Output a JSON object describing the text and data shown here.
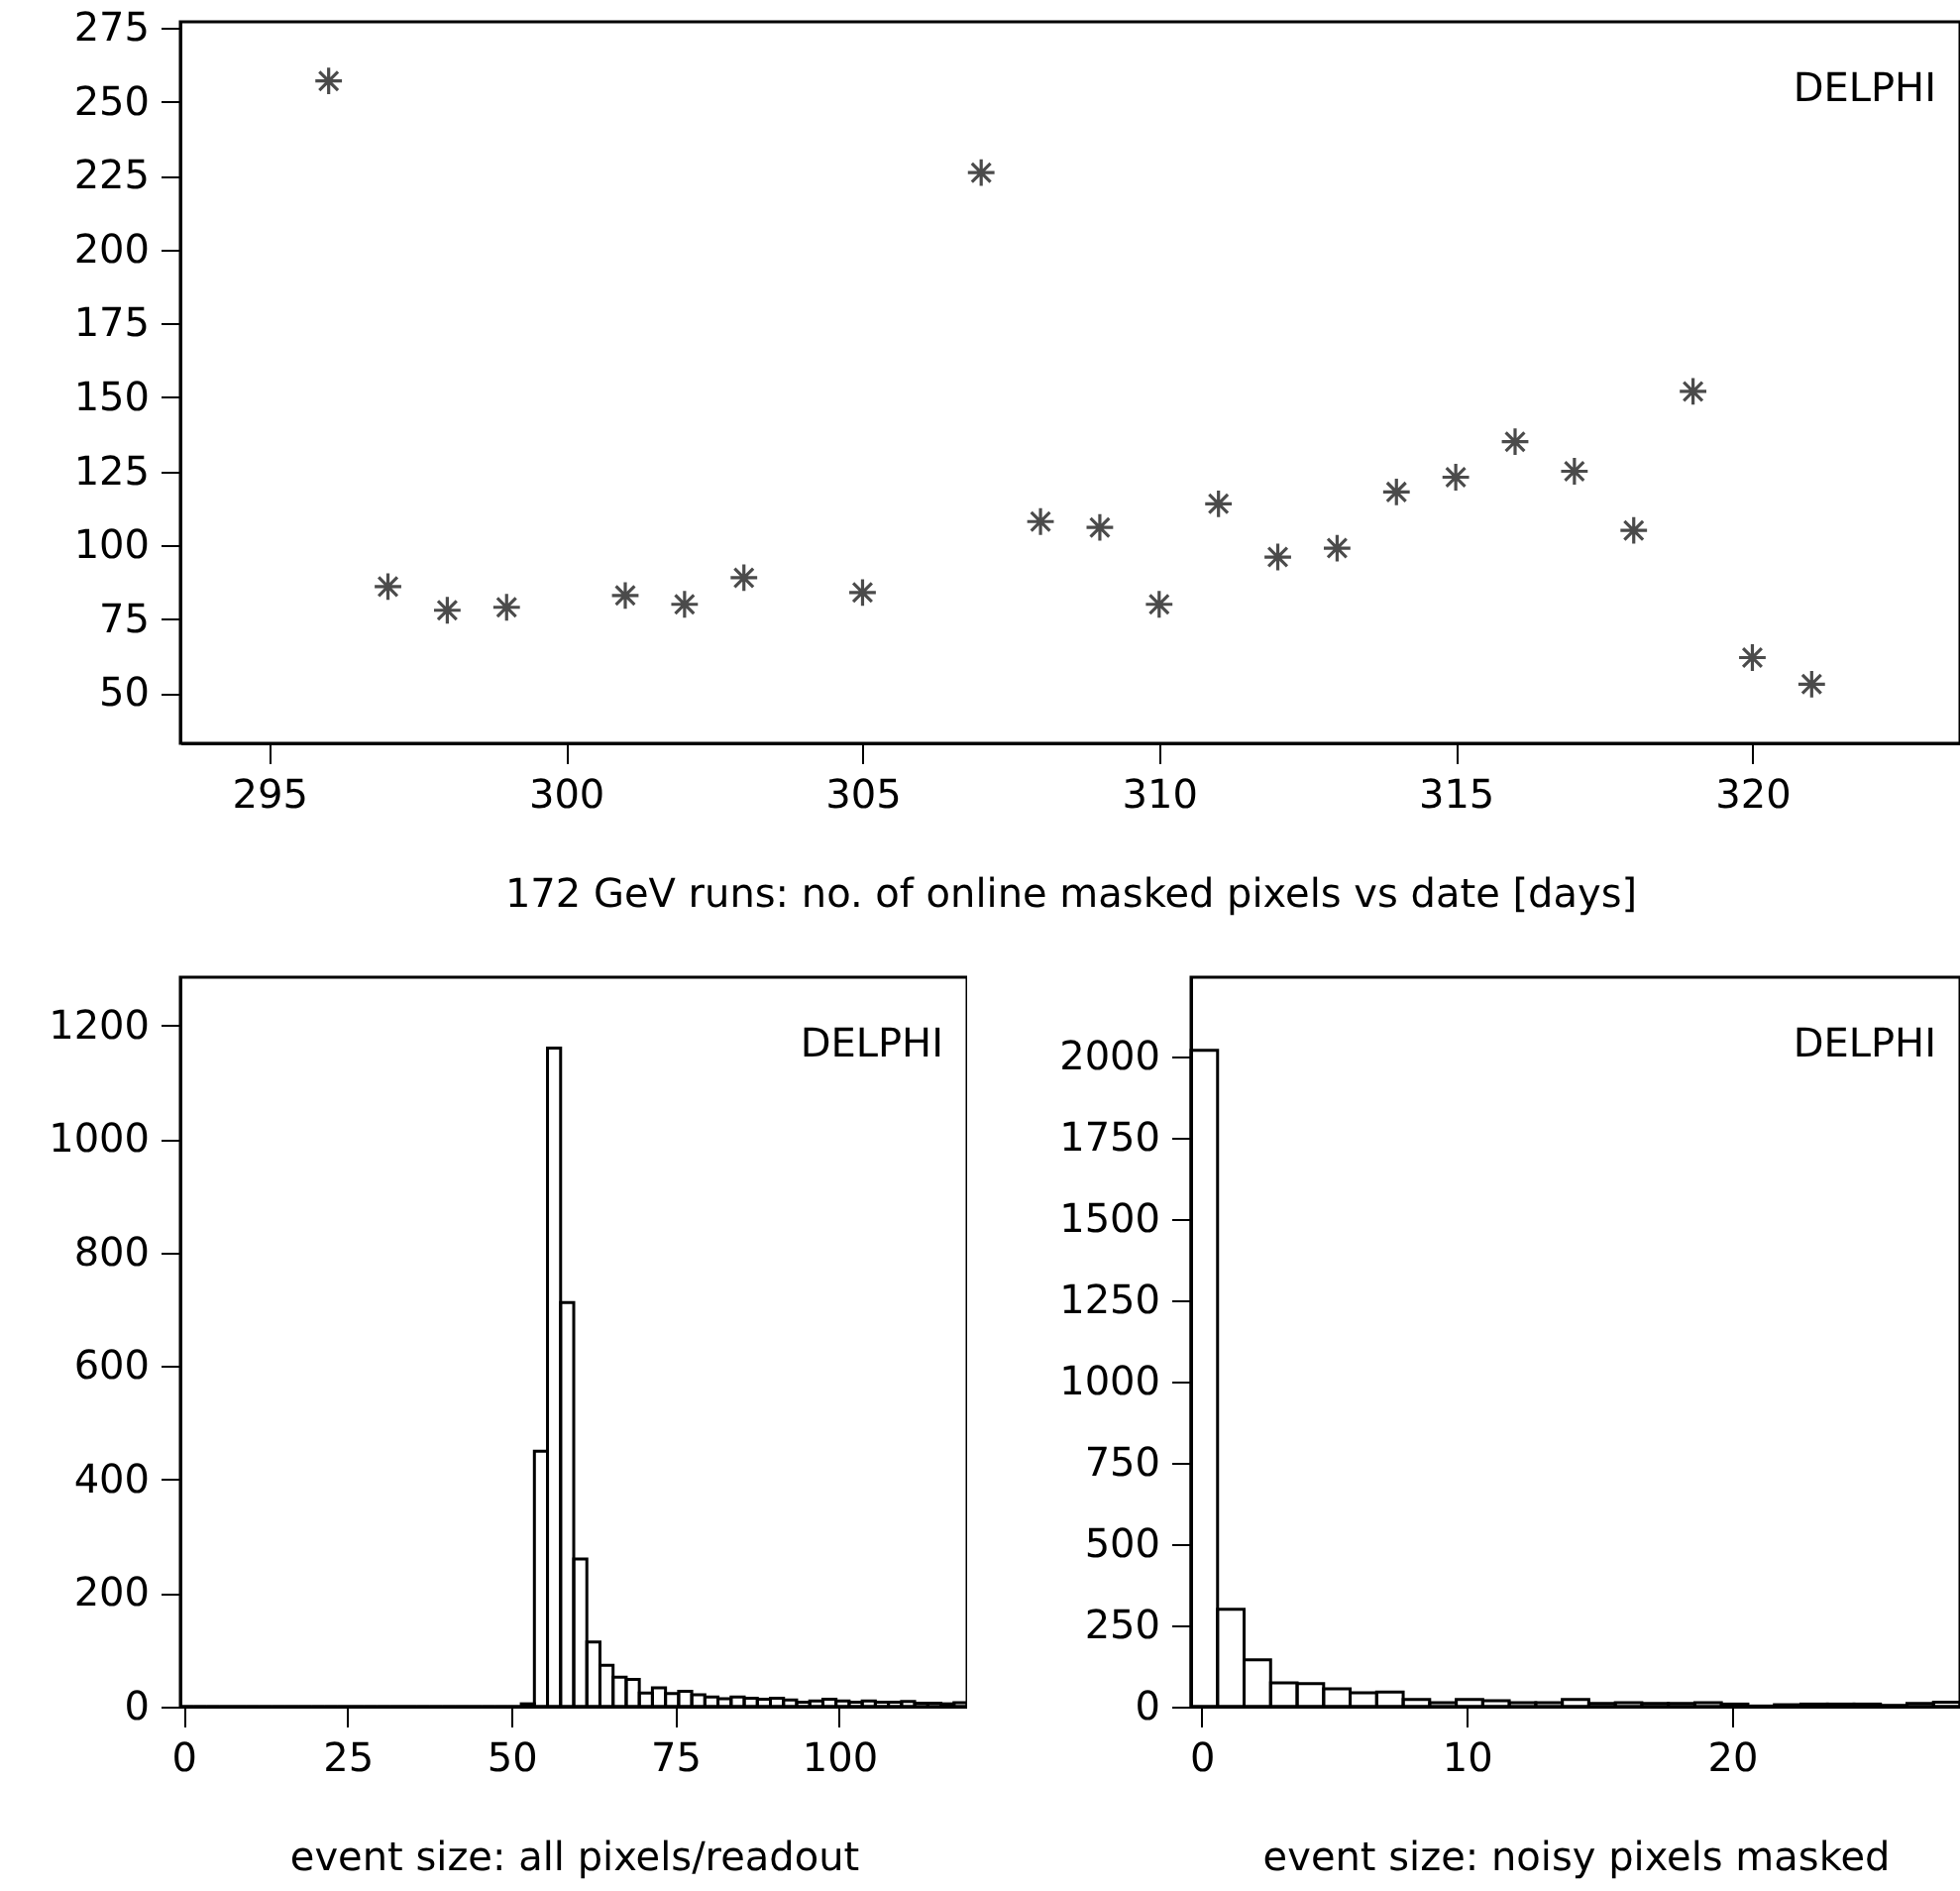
{
  "chart_data": [
    {
      "type": "scatter",
      "xlabel": "172 GeV runs: no. of online masked pixels vs date [days]",
      "annotations": [
        "DELPHI"
      ],
      "marker": "cross",
      "series": [
        {
          "color": "#000000",
          "x": [
            296,
            297,
            298,
            299,
            301,
            302,
            303,
            305,
            307,
            308,
            309,
            310,
            311,
            312,
            313,
            314,
            315,
            316,
            317,
            318,
            319,
            320,
            321
          ],
          "values": [
            257,
            86,
            78,
            79,
            83,
            80,
            89,
            84,
            226,
            108,
            106,
            80,
            114,
            96,
            99,
            118,
            123,
            135,
            125,
            105,
            152,
            62,
            53
          ]
        }
      ],
      "xlim": [
        293.5,
        323.5
      ],
      "xticks": [
        295,
        300,
        305,
        310,
        315,
        320
      ],
      "ylim": [
        33,
        277
      ],
      "yticks": [
        50,
        75,
        100,
        125,
        150,
        175,
        200,
        225,
        250,
        275
      ]
    },
    {
      "type": "histogram",
      "xlabel": "event size: all pixels/readout",
      "annotations": [
        "DELPHI"
      ],
      "color": "#000000",
      "bins": [
        -0.5,
        1.5,
        3.5,
        5.5,
        7.5,
        9.5,
        11.5,
        13.5,
        15.5,
        17.5,
        19.5,
        21.5,
        23.5,
        25.5,
        27.5,
        29.5,
        31.5,
        33.5,
        35.5,
        37.5,
        39.5,
        41.5,
        43.5,
        45.5,
        47.5,
        49.5,
        51.5,
        53.5,
        55.5,
        57.5,
        59.5,
        61.5,
        63.5,
        65.5,
        67.5,
        69.5,
        71.5,
        73.5,
        75.5,
        77.5,
        79.5,
        81.5,
        83.5,
        85.5,
        87.5,
        89.5,
        91.5,
        93.5,
        95.5,
        97.5,
        99.5,
        101.5,
        103.5,
        105.5,
        107.5,
        109.5,
        111.5,
        113.5,
        115.5,
        117.5,
        119.5
      ],
      "values": [
        0,
        0,
        0,
        0,
        0,
        0,
        0,
        0,
        0,
        0,
        0,
        0,
        0,
        0,
        0,
        0,
        0,
        0,
        0,
        0,
        0,
        0,
        0,
        0,
        0,
        0,
        5,
        450,
        1160,
        712,
        260,
        114,
        73,
        52,
        48,
        24,
        33,
        23,
        27,
        21,
        17,
        14,
        17,
        15,
        13,
        15,
        12,
        8,
        10,
        13,
        10,
        8,
        10,
        8,
        8,
        9,
        6,
        6,
        5,
        7
      ],
      "xlim": [
        -0.5,
        119.5
      ],
      "xticks": [
        0,
        25,
        50,
        75,
        100
      ],
      "ylim": [
        0,
        1285
      ],
      "yticks": [
        0,
        200,
        400,
        600,
        800,
        1000,
        1200
      ]
    },
    {
      "type": "histogram",
      "xlabel": "event size: noisy pixels masked",
      "annotations": [
        "DELPHI"
      ],
      "color": "#000000",
      "bins": [
        -0.4,
        0.6,
        1.6,
        2.6,
        3.6,
        4.6,
        5.6,
        6.6,
        7.6,
        8.6,
        9.6,
        10.6,
        11.6,
        12.6,
        13.6,
        14.6,
        15.6,
        16.6,
        17.6,
        18.6,
        19.6,
        20.6,
        21.6,
        22.6,
        23.6,
        24.6,
        25.6,
        26.6,
        27.6,
        28.6
      ],
      "values": [
        2020,
        300,
        144,
        73,
        71,
        55,
        43,
        45,
        22,
        12,
        22,
        18,
        12,
        12,
        22,
        10,
        12,
        10,
        10,
        12,
        8,
        2,
        6,
        8,
        8,
        8,
        4,
        10,
        14
      ],
      "xlim": [
        -0.4,
        28.6
      ],
      "xticks": [
        0,
        10,
        20
      ],
      "ylim": [
        0,
        2245
      ],
      "yticks": [
        0,
        250,
        500,
        750,
        1000,
        1250,
        1500,
        1750,
        2000
      ]
    }
  ]
}
